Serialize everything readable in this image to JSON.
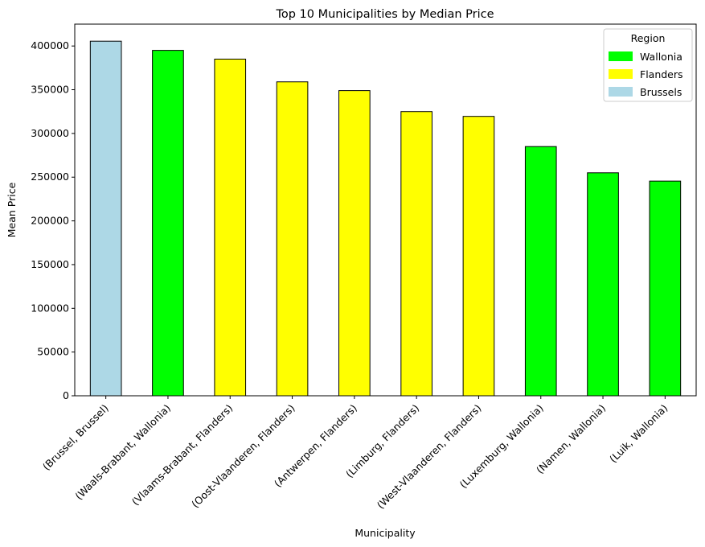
{
  "chart_data": {
    "type": "bar",
    "title": "Top 10 Municipalities by Median Price",
    "xlabel": "Municipality",
    "ylabel": "Mean Price",
    "ylim": [
      0,
      425000
    ],
    "yticks": [
      0,
      50000,
      100000,
      150000,
      200000,
      250000,
      300000,
      350000,
      400000
    ],
    "grid": false,
    "categories": [
      "(Brussel, Brussel)",
      "(Waals-Brabant, Wallonia)",
      "(Vlaams-Brabant, Flanders)",
      "(Oost-Vlaanderen, Flanders)",
      "(Antwerpen, Flanders)",
      "(Limburg, Flanders)",
      "(West-Vlaanderen, Flanders)",
      "(Luxemburg, Wallonia)",
      "(Namen, Wallonia)",
      "(Luik, Wallonia)"
    ],
    "values": [
      405500,
      395000,
      385000,
      359000,
      349000,
      325000,
      319500,
      285000,
      255000,
      245500
    ],
    "bar_regions": [
      "Brussels",
      "Wallonia",
      "Flanders",
      "Flanders",
      "Flanders",
      "Flanders",
      "Flanders",
      "Wallonia",
      "Wallonia",
      "Wallonia"
    ],
    "legend": {
      "title": "Region",
      "placement": "top-right",
      "entries": [
        {
          "label": "Wallonia",
          "color": "#00ff00"
        },
        {
          "label": "Flanders",
          "color": "#ffff00"
        },
        {
          "label": "Brussels",
          "color": "#add8e6"
        }
      ]
    }
  }
}
